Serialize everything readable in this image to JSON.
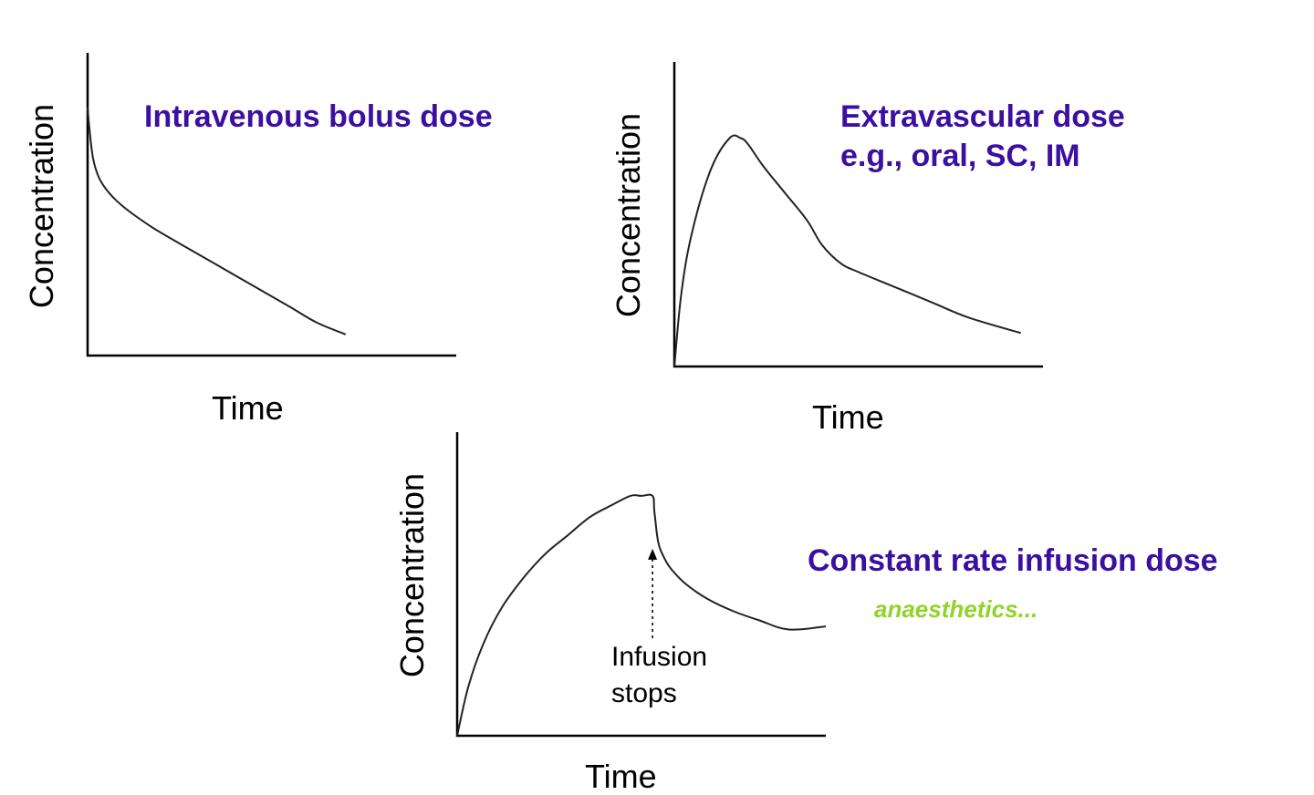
{
  "colors": {
    "title": "#3b0fa0",
    "note": "#8fd42a",
    "axis": "#000000",
    "curve": "#222222"
  },
  "chart_data": [
    {
      "type": "line",
      "title": "Intravenous bolus dose",
      "xlabel": "Time",
      "ylabel": "Concentration",
      "xlim": [
        0,
        1
      ],
      "ylim": [
        0,
        1
      ],
      "grid": false,
      "x": [
        0,
        0.005,
        0.015,
        0.03,
        0.05,
        0.08,
        0.12,
        0.18,
        0.25,
        0.35,
        0.45,
        0.55,
        0.62,
        0.7
      ],
      "series": [
        {
          "values": [
            0.82,
            0.75,
            0.65,
            0.59,
            0.55,
            0.51,
            0.47,
            0.42,
            0.37,
            0.3,
            0.23,
            0.16,
            0.11,
            0.07
          ]
        }
      ]
    },
    {
      "type": "line",
      "title": "Extravascular dose\ne.g., oral, SC, IM",
      "xlabel": "Time",
      "ylabel": "Concentration",
      "xlim": [
        0,
        1
      ],
      "ylim": [
        0,
        1
      ],
      "grid": false,
      "x": [
        0,
        0.02,
        0.05,
        0.1,
        0.15,
        0.18,
        0.2,
        0.24,
        0.3,
        0.36,
        0.4,
        0.45,
        0.5,
        0.6,
        0.7,
        0.8,
        0.94
      ],
      "series": [
        {
          "values": [
            0,
            0.25,
            0.45,
            0.65,
            0.75,
            0.75,
            0.73,
            0.66,
            0.57,
            0.48,
            0.4,
            0.34,
            0.31,
            0.26,
            0.21,
            0.16,
            0.11
          ]
        }
      ],
      "peak": {
        "x": 0.18,
        "y": 0.75
      }
    },
    {
      "type": "line",
      "title": "Constant rate infusion dose",
      "xlabel": "Time",
      "ylabel": "Concentration",
      "xlim": [
        0,
        1
      ],
      "ylim": [
        0,
        1
      ],
      "grid": false,
      "x": [
        0,
        0.03,
        0.07,
        0.12,
        0.18,
        0.24,
        0.3,
        0.36,
        0.42,
        0.47,
        0.5,
        0.53,
        0.535,
        0.545,
        0.56,
        0.58,
        0.62,
        0.68,
        0.75,
        0.82,
        0.9,
        1.0
      ],
      "series": [
        {
          "values": [
            0,
            0.16,
            0.3,
            0.42,
            0.52,
            0.6,
            0.66,
            0.72,
            0.76,
            0.79,
            0.79,
            0.79,
            0.74,
            0.64,
            0.59,
            0.55,
            0.5,
            0.45,
            0.41,
            0.38,
            0.35,
            0.36
          ]
        }
      ],
      "annotation": {
        "text_line1": "Infusion",
        "text_line2": "stops",
        "x": 0.53
      },
      "note": "anaesthetics..."
    }
  ]
}
